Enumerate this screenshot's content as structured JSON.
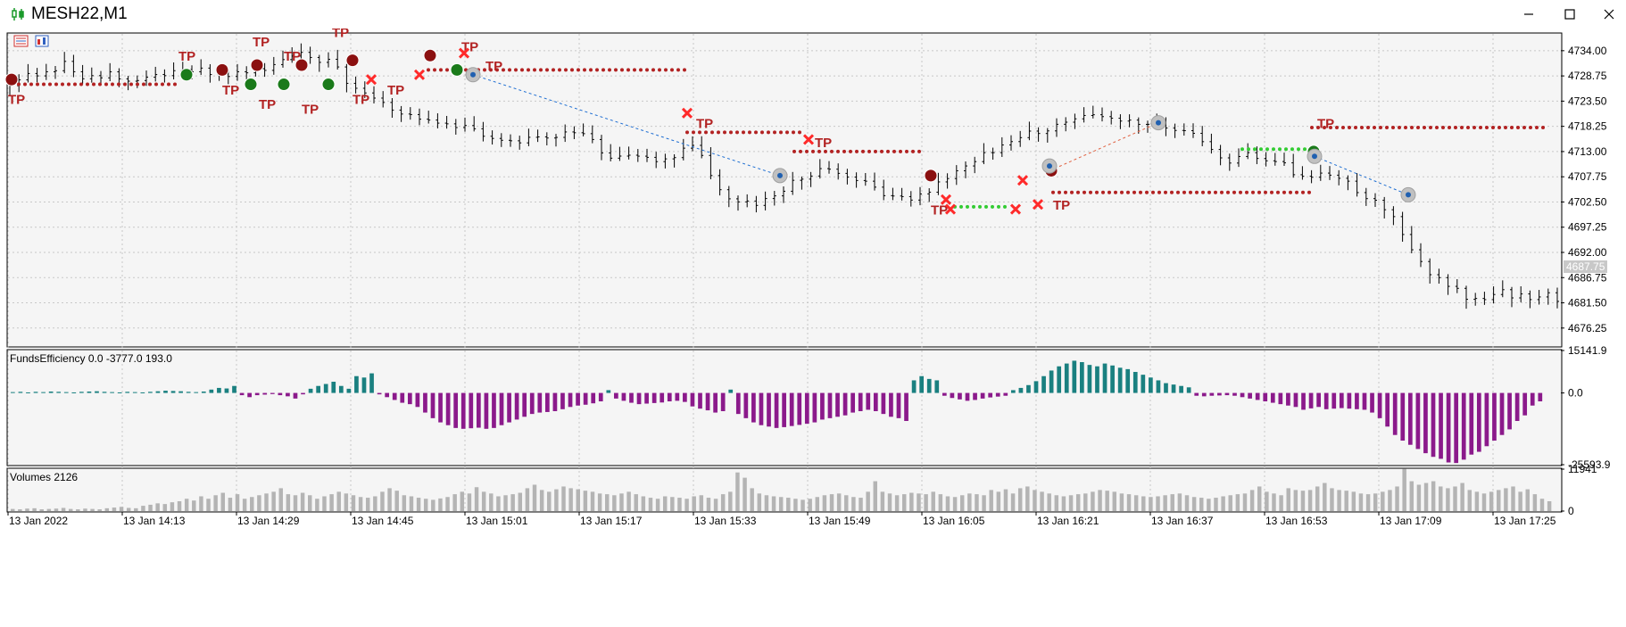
{
  "window": {
    "title": "MESH22,M1",
    "icon": "candlestick-chart-icon",
    "controls": [
      "minimize-icon",
      "maximize-icon",
      "close-icon"
    ]
  },
  "toolbar_icons": [
    "data-table-icon",
    "chart-properties-icon"
  ],
  "colors": {
    "background": "#f5f5f5",
    "grid": "#c8c8c8",
    "candles": "#000000",
    "tp_marker": "#b22222",
    "buy_marker": "#1a7a1a",
    "loss_marker": "#ff2a2a",
    "histogram_positive": "#1a8080",
    "histogram_negative": "#8b1a8b",
    "volumes": "#b4b4b4",
    "trend_line": "#1e6ed2"
  },
  "chart_data": [
    {
      "type": "candlestick",
      "symbol": "MESH22",
      "timeframe": "M1",
      "y_ticks": [
        "4734.00",
        "4728.75",
        "4723.50",
        "4718.25",
        "4713.00",
        "4707.75",
        "4702.50",
        "4697.25",
        "4692.00",
        "4686.75",
        "4681.50",
        "4676.25"
      ],
      "ylim": [
        4672.5,
        4737.5
      ],
      "current_price": "4687.75",
      "close_path": [
        [
          0,
          4727.5
        ],
        [
          10,
          4728.5
        ],
        [
          20,
          4729.2
        ],
        [
          30,
          4731
        ],
        [
          40,
          4728
        ],
        [
          55,
          4729
        ],
        [
          70,
          4728
        ],
        [
          85,
          4729
        ],
        [
          100,
          4730
        ],
        [
          110,
          4729.5
        ],
        [
          120,
          4729
        ],
        [
          140,
          4730
        ],
        [
          160,
          4733
        ],
        [
          175,
          4732
        ],
        [
          182,
          4729
        ],
        [
          190,
          4726
        ],
        [
          210,
          4722
        ],
        [
          230,
          4719
        ],
        [
          250,
          4718
        ],
        [
          260,
          4716
        ],
        [
          280,
          4715
        ],
        [
          300,
          4716.5
        ],
        [
          310,
          4717
        ],
        [
          320,
          4715
        ],
        [
          330,
          4711
        ],
        [
          345,
          4712
        ],
        [
          355,
          4711
        ],
        [
          370,
          4713
        ],
        [
          378,
          4714
        ],
        [
          382,
          4709
        ],
        [
          392,
          4704
        ],
        [
          410,
          4702
        ],
        [
          425,
          4705
        ],
        [
          435,
          4708
        ],
        [
          450,
          4709
        ],
        [
          460,
          4708
        ],
        [
          470,
          4706.5
        ],
        [
          480,
          4703.5
        ],
        [
          495,
          4703
        ],
        [
          510,
          4706
        ],
        [
          523,
          4710
        ],
        [
          535,
          4712
        ],
        [
          550,
          4715
        ],
        [
          570,
          4718
        ],
        [
          585,
          4720
        ],
        [
          605,
          4720
        ],
        [
          630,
          4719
        ],
        [
          650,
          4716.5
        ],
        [
          660,
          4713
        ],
        [
          670,
          4711
        ],
        [
          680,
          4712
        ],
        [
          690,
          4711
        ],
        [
          700,
          4710
        ],
        [
          706,
          4707
        ],
        [
          720,
          4708
        ],
        [
          735,
          4707.5
        ],
        [
          740,
          4704
        ],
        [
          750,
          4703
        ],
        [
          760,
          4700
        ],
        [
          765,
          4696
        ],
        [
          770,
          4692
        ],
        [
          780,
          4688
        ],
        [
          790,
          4685.5
        ],
        [
          800,
          4683
        ],
        [
          810,
          4682
        ],
        [
          820,
          4683.5
        ],
        [
          830,
          4683
        ],
        [
          840,
          4682.5
        ],
        [
          845,
          4684
        ],
        [
          850,
          4682
        ]
      ],
      "trades": [
        {
          "type": "tp",
          "count": 17
        },
        {
          "type": "sell_entry",
          "count": 10
        },
        {
          "type": "buy_entry",
          "count": 9
        },
        {
          "type": "loss_exit",
          "count": 10
        }
      ]
    },
    {
      "type": "bar",
      "name": "FundsEfficiency",
      "params": "0.0 -3777.0 193.0",
      "y_ticks": [
        "15141.9",
        "0.0",
        "-25593.9"
      ],
      "ylim": [
        -25593.9,
        15141.9
      ],
      "values": [
        300,
        400,
        200,
        400,
        300,
        500,
        400,
        300,
        200,
        400,
        500,
        600,
        400,
        300,
        200,
        400,
        300,
        200,
        400,
        600,
        800,
        700,
        600,
        400,
        300,
        500,
        1200,
        1800,
        1600,
        2500,
        -800,
        -1500,
        -800,
        -600,
        -400,
        -800,
        -1200,
        -2000,
        -500,
        1500,
        2500,
        3200,
        4000,
        2500,
        1500,
        6000,
        5500,
        7000,
        -500,
        -1500,
        -2500,
        -3500,
        -4000,
        -5000,
        -7000,
        -9000,
        -10500,
        -11500,
        -12500,
        -12800,
        -12600,
        -12400,
        -12800,
        -12500,
        -11500,
        -10500,
        -9500,
        -8500,
        -7500,
        -7000,
        -6800,
        -6500,
        -5800,
        -5000,
        -4500,
        -4200,
        -3700,
        -3000,
        1000,
        -2000,
        -2800,
        -3500,
        -4000,
        -3800,
        -3600,
        -3400,
        -3000,
        -2800,
        -3200,
        -4800,
        -5600,
        -6200,
        -7000,
        -6500,
        1200,
        -7500,
        -9000,
        -10500,
        -11500,
        -12000,
        -12500,
        -12200,
        -11800,
        -11400,
        -11000,
        -10500,
        -9500,
        -9000,
        -8500,
        -8000,
        -7000,
        -6500,
        -6000,
        -6500,
        -7500,
        -8500,
        -9000,
        -10000,
        4500,
        6000,
        5000,
        4500,
        -1000,
        -1800,
        -2300,
        -2800,
        -2500,
        -2000,
        -1600,
        -1300,
        -1000,
        1000,
        1800,
        2800,
        4200,
        6000,
        8000,
        9500,
        10500,
        11500,
        11000,
        10000,
        9500,
        10500,
        9800,
        9000,
        8500,
        7500,
        6500,
        5500,
        4500,
        3500,
        3000,
        2500,
        2000,
        -1000,
        -1200,
        -1000,
        -900,
        -800,
        -1000,
        -1500,
        -2000,
        -2500,
        -3000,
        -3500,
        -4000,
        -4500,
        -5000,
        -6000,
        -5500,
        -5000,
        -5800,
        -5600,
        -5400,
        -5600,
        -5800,
        -6000,
        -7000,
        -9000,
        -12000,
        -15000,
        -17000,
        -18500,
        -20000,
        -21500,
        -22800,
        -23500,
        -24800,
        -25000,
        -23800,
        -22000,
        -21000,
        -19000,
        -17000,
        -15000,
        -13000,
        -10000,
        -8000,
        -4500,
        -3000
      ]
    },
    {
      "type": "bar",
      "name": "Volumes",
      "value": "2126",
      "y_ticks": [
        "11941",
        "0"
      ],
      "ylim": [
        0,
        11941
      ],
      "values": [
        600,
        500,
        700,
        800,
        500,
        600,
        700,
        900,
        600,
        500,
        700,
        600,
        500,
        800,
        1000,
        1200,
        900,
        800,
        1500,
        1800,
        2200,
        2000,
        2500,
        2800,
        3500,
        3000,
        4200,
        3500,
        4500,
        5200,
        3800,
        4800,
        3500,
        4000,
        4500,
        5000,
        5500,
        6500,
        4800,
        4500,
        5200,
        4500,
        3500,
        4200,
        4800,
        5500,
        5000,
        4500,
        4000,
        3800,
        4200,
        5500,
        6500,
        5800,
        4500,
        4200,
        3800,
        3500,
        3200,
        3600,
        4000,
        4800,
        5500,
        5000,
        6800,
        5500,
        5000,
        4200,
        4500,
        4800,
        5200,
        6500,
        7500,
        6000,
        5500,
        6200,
        7000,
        6500,
        6200,
        5800,
        5500,
        5000,
        4800,
        4500,
        5000,
        5500,
        4800,
        4200,
        3800,
        3500,
        4200,
        4000,
        3800,
        3500,
        4200,
        4500,
        3800,
        3500,
        4800,
        5500,
        11000,
        9500,
        6500,
        5000,
        4500,
        4200,
        4000,
        3800,
        3500,
        3200,
        3500,
        4000,
        4500,
        4800,
        5000,
        4500,
        4000,
        3800,
        5500,
        8500,
        5500,
        5000,
        4500,
        4800,
        5200,
        5000,
        4800,
        5500,
        4800,
        4200,
        4000,
        4500,
        5000,
        4800,
        4500,
        6000,
        5500,
        6200,
        5000,
        6500,
        7000,
        6000,
        5500,
        5000,
        4500,
        4200,
        4500,
        4800,
        5000,
        5500,
        6000,
        5800,
        5500,
        5000,
        4800,
        4500,
        4200,
        4000,
        4200,
        4500,
        4800,
        5000,
        4500,
        4000,
        3800,
        3500,
        3800,
        4200,
        4500,
        4800,
        5000,
        6000,
        7000,
        5500,
        5000,
        4500,
        6500,
        6000,
        5800,
        6000,
        7000,
        8000,
        6500,
        6000,
        5800,
        5500,
        5000,
        4800,
        5000,
        5500,
        6000,
        7000,
        12000,
        8500,
        7500,
        8000,
        8500,
        7000,
        6500,
        7000,
        8000,
        6000,
        5500,
        5000,
        5500,
        6000,
        6500,
        7000,
        5500,
        6200,
        4800,
        3500,
        2800
      ]
    }
  ],
  "time_axis": [
    "13 Jan 2022",
    "13 Jan 14:13",
    "13 Jan 14:29",
    "13 Jan 14:45",
    "13 Jan 15:01",
    "13 Jan 15:17",
    "13 Jan 15:33",
    "13 Jan 15:49",
    "13 Jan 16:05",
    "13 Jan 16:21",
    "13 Jan 16:37",
    "13 Jan 16:53",
    "13 Jan 17:09",
    "13 Jan 17:25"
  ],
  "labels": {
    "tp": "TP",
    "funds_title": "FundsEfficiency 0.0 -3777.0 193.0",
    "volumes_title": "Volumes 2126"
  }
}
